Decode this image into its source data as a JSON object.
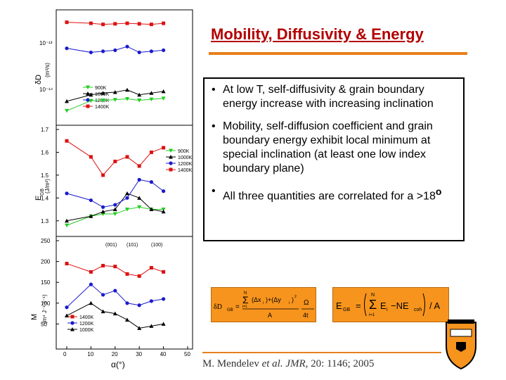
{
  "slide": {
    "title": "Mobility, Diffusivity & Energy",
    "bullets": [
      "At low T, self-diffusivity & grain boundary energy increase with increasing inclination",
      "Mobility, self-diffusion coefficient and grain boundary energy exhibit local minimum at special inclination (at least one low index boundary plane)",
      "All three quantities are correlated for a >18"
    ],
    "bullet_symbol": "•",
    "degree_symbol": "o",
    "citation": {
      "author": "M. Mendelev ",
      "etal": "et al.",
      "journal": "JMR,",
      "rest": " 20: 1146; 2005"
    },
    "accent_color": "#e87f1a",
    "title_color": "#b30000"
  },
  "formula1": {
    "lhs": "δD",
    "lhs_sub": "GB",
    "eq": "=",
    "sum_top": "N",
    "sum_bottom": "i=1",
    "sigma": "Σ",
    "term": "(Δx",
    "sub_i": "i",
    "sq": "2",
    "plus": ")+(Δy",
    "close": ")",
    "den1": "A",
    "omega": "Ω",
    "den2": "4t"
  },
  "formula2": {
    "lhs": "E",
    "lhs_sub": "GB",
    "eq": "=",
    "sum_top": "N",
    "sum_bottom": "i=1",
    "sigma": "Σ",
    "e": "E",
    "sub_i": "i",
    "minus": "−NE",
    "sub_coh": "coh",
    "over": "/ A"
  },
  "chart_data": [
    {
      "type": "line",
      "ylabel": "δD",
      "ylabel_note": "(m³/s)",
      "yscale": "log",
      "yticks": [
        "10⁻¹³",
        "10⁻¹⁴"
      ],
      "x": [
        0,
        10,
        15,
        20,
        25,
        30,
        35,
        40
      ],
      "series": [
        {
          "name": "900K",
          "color": "#22cc22",
          "marker": "triangle-down",
          "values": [
            0.5,
            0.82,
            0.84,
            0.86,
            0.9,
            0.84,
            0.88,
            0.92
          ]
        },
        {
          "name": "1000K",
          "color": "#000000",
          "marker": "triangle-up",
          "values": [
            0.8,
            1.1,
            1.2,
            1.25,
            1.4,
            1.1,
            1.2,
            1.3
          ]
        },
        {
          "name": "1200K",
          "color": "#1a1acc",
          "marker": "circle",
          "values": [
            11,
            9,
            9.5,
            10,
            12,
            9,
            9.5,
            10
          ]
        },
        {
          "name": "1400K",
          "color": "#dd1111",
          "marker": "square",
          "values": [
            40,
            38,
            36,
            37,
            38,
            37,
            36,
            38
          ]
        }
      ]
    },
    {
      "type": "line",
      "ylabel": "E",
      "ylabel_sub": "GB",
      "ylabel_note": "(J/m²)",
      "ylim": [
        1.25,
        1.7
      ],
      "yticks": [
        "1.7",
        "1.6",
        "1.5",
        "1.4",
        "1.3"
      ],
      "x": [
        0,
        10,
        15,
        20,
        25,
        30,
        35,
        40
      ],
      "series": [
        {
          "name": "900K",
          "color": "#22cc22",
          "marker": "triangle-down",
          "values": [
            1.28,
            1.32,
            1.33,
            1.33,
            1.35,
            1.36,
            1.35,
            1.35
          ]
        },
        {
          "name": "1000K",
          "color": "#000000",
          "marker": "triangle-up",
          "values": [
            1.3,
            1.32,
            1.34,
            1.35,
            1.42,
            1.4,
            1.35,
            1.34
          ]
        },
        {
          "name": "1200K",
          "color": "#1a1acc",
          "marker": "circle",
          "values": [
            1.42,
            1.39,
            1.36,
            1.37,
            1.4,
            1.48,
            1.47,
            1.43
          ]
        },
        {
          "name": "1400K",
          "color": "#dd1111",
          "marker": "square",
          "values": [
            1.65,
            1.58,
            1.5,
            1.56,
            1.58,
            1.54,
            1.6,
            1.62
          ]
        }
      ]
    },
    {
      "type": "line",
      "ylabel": "M",
      "ylabel_note": "(m⁴ J⁻¹ s⁻¹)",
      "xlabel": "α(°)",
      "ylim": [
        0,
        250
      ],
      "yticks": [
        "250",
        "200",
        "150",
        "100",
        "50"
      ],
      "x": [
        0,
        10,
        15,
        20,
        25,
        30,
        35,
        40
      ],
      "xticks": [
        "0",
        "10",
        "20",
        "30",
        "40",
        "50"
      ],
      "annotations": [
        "(001)",
        "(101)",
        "(100)"
      ],
      "series": [
        {
          "name": "1400K",
          "color": "#dd1111",
          "marker": "square",
          "values": [
            195,
            175,
            190,
            188,
            170,
            165,
            185,
            175
          ]
        },
        {
          "name": "1200K",
          "color": "#1a1acc",
          "marker": "circle",
          "values": [
            90,
            145,
            120,
            130,
            100,
            95,
            105,
            110
          ]
        },
        {
          "name": "1000K",
          "color": "#000000",
          "marker": "triangle-up",
          "values": [
            70,
            100,
            80,
            75,
            60,
            40,
            45,
            50
          ]
        }
      ]
    }
  ]
}
